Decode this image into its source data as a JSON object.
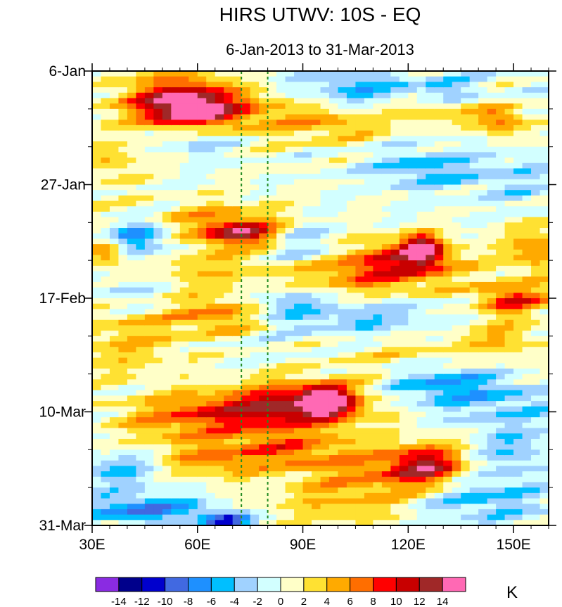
{
  "chart_data": {
    "type": "heatmap",
    "title": "HIRS UTWV: 10S - EQ",
    "subtitle": "6-Jan-2013 to 31-Mar-2013",
    "x_axis": {
      "range": [
        30,
        160
      ],
      "ticks": [
        30,
        60,
        90,
        120,
        150
      ],
      "tick_labels": [
        "30E",
        "60E",
        "90E",
        "120E",
        "150E"
      ],
      "minor_ticks": [
        35,
        40,
        45,
        50,
        55,
        65,
        70,
        75,
        80,
        85,
        95,
        100,
        105,
        110,
        115,
        125,
        130,
        135,
        140,
        145,
        155,
        160
      ]
    },
    "y_axis": {
      "range_days": [
        0,
        84
      ],
      "ticks": [
        0,
        21,
        42,
        63,
        84
      ],
      "tick_labels": [
        "6-Jan",
        "27-Jan",
        "17-Feb",
        "10-Mar",
        "31-Mar"
      ],
      "minor_ticks": [
        7,
        14,
        28,
        35,
        49,
        56,
        70,
        77
      ]
    },
    "reference_lines": [
      {
        "lon": 72.5,
        "color": "#228b22",
        "style": "dashed"
      },
      {
        "lon": 80,
        "color": "#228b22",
        "style": "dashed"
      }
    ],
    "colorbar": {
      "unit": "K",
      "levels": [
        -14,
        -12,
        -10,
        -8,
        -6,
        -4,
        -2,
        0,
        2,
        4,
        6,
        8,
        10,
        12,
        14
      ],
      "level_labels": [
        "-14",
        "-12",
        "-10",
        "-8",
        "-6",
        "-4",
        "-2",
        "0",
        "2",
        "4",
        "6",
        "8",
        "10",
        "12",
        "14"
      ],
      "colors": [
        "#8a2be2",
        "#00008b",
        "#0000cd",
        "#4169e1",
        "#1e90ff",
        "#00bfff",
        "#a0d2ff",
        "#d2ffff",
        "#ffffc8",
        "#ffe132",
        "#ffaa00",
        "#ff6e00",
        "#ff0000",
        "#c80000",
        "#a02828",
        "#ff69b4"
      ]
    },
    "features": [
      {
        "lon": 58,
        "day": 7,
        "value": 12,
        "sx": 9,
        "sy": 2.6
      },
      {
        "lon": 53,
        "day": 5,
        "value": 7,
        "sx": 12,
        "sy": 4
      },
      {
        "lon": 78,
        "day": 8,
        "value": 4,
        "sx": 14,
        "sy": 3
      },
      {
        "lon": 100,
        "day": 10,
        "value": 4,
        "sx": 10,
        "sy": 2.2
      },
      {
        "lon": 128,
        "day": 7,
        "value": 4,
        "sx": 10,
        "sy": 2
      },
      {
        "lon": 146,
        "day": 9,
        "value": 7,
        "sx": 5,
        "sy": 2
      },
      {
        "lon": 36,
        "day": 17,
        "value": 4,
        "sx": 6,
        "sy": 2.5
      },
      {
        "lon": 60,
        "day": 12,
        "value": -5,
        "sx": 8,
        "sy": 2
      },
      {
        "lon": 105,
        "day": 3,
        "value": -5,
        "sx": 12,
        "sy": 2.5
      },
      {
        "lon": 132,
        "day": 4,
        "value": -4,
        "sx": 8,
        "sy": 2
      },
      {
        "lon": 125,
        "day": 18,
        "value": -5,
        "sx": 10,
        "sy": 2.5
      },
      {
        "lon": 150,
        "day": 20,
        "value": -3,
        "sx": 9,
        "sy": 3
      },
      {
        "lon": 42,
        "day": 26,
        "value": 4,
        "sx": 10,
        "sy": 2
      },
      {
        "lon": 73,
        "day": 30,
        "value": 10,
        "sx": 8,
        "sy": 1.6
      },
      {
        "lon": 66,
        "day": 28,
        "value": 5,
        "sx": 16,
        "sy": 3
      },
      {
        "lon": 45,
        "day": 26,
        "value": -4,
        "sx": 8,
        "sy": 2
      },
      {
        "lon": 42,
        "day": 31,
        "value": -8,
        "sx": 9,
        "sy": 2.5
      },
      {
        "lon": 90,
        "day": 32,
        "value": -5,
        "sx": 8,
        "sy": 3
      },
      {
        "lon": 124,
        "day": 33,
        "value": 14,
        "sx": 3.5,
        "sy": 1.8
      },
      {
        "lon": 118,
        "day": 35,
        "value": 8,
        "sx": 12,
        "sy": 3
      },
      {
        "lon": 100,
        "day": 38,
        "value": 5,
        "sx": 20,
        "sy": 3
      },
      {
        "lon": 34,
        "day": 33,
        "value": 9,
        "sx": 4,
        "sy": 2
      },
      {
        "lon": 58,
        "day": 36,
        "value": 3,
        "sx": 12,
        "sy": 3
      },
      {
        "lon": 156,
        "day": 33,
        "value": 6,
        "sx": 6,
        "sy": 3
      },
      {
        "lon": 85,
        "day": 43,
        "value": -5,
        "sx": 9,
        "sy": 3
      },
      {
        "lon": 110,
        "day": 46,
        "value": -4,
        "sx": 12,
        "sy": 3
      },
      {
        "lon": 150,
        "day": 42,
        "value": 9,
        "sx": 7,
        "sy": 2
      },
      {
        "lon": 40,
        "day": 41,
        "value": -3,
        "sx": 8,
        "sy": 2
      },
      {
        "lon": 67,
        "day": 45,
        "value": 6,
        "sx": 10,
        "sy": 2.5
      },
      {
        "lon": 40,
        "day": 50,
        "value": 4,
        "sx": 12,
        "sy": 5
      },
      {
        "lon": 97,
        "day": 61,
        "value": 14,
        "sx": 4.5,
        "sy": 1.8
      },
      {
        "lon": 90,
        "day": 61,
        "value": 8,
        "sx": 14,
        "sy": 3
      },
      {
        "lon": 75,
        "day": 63,
        "value": 7,
        "sx": 18,
        "sy": 2.5
      },
      {
        "lon": 55,
        "day": 65,
        "value": 4,
        "sx": 14,
        "sy": 3
      },
      {
        "lon": 130,
        "day": 58,
        "value": -6,
        "sx": 12,
        "sy": 3
      },
      {
        "lon": 150,
        "day": 62,
        "value": -3,
        "sx": 10,
        "sy": 3
      },
      {
        "lon": 125,
        "day": 73,
        "value": 10,
        "sx": 7,
        "sy": 2.5
      },
      {
        "lon": 112,
        "day": 74,
        "value": 5,
        "sx": 16,
        "sy": 4
      },
      {
        "lon": 85,
        "day": 70,
        "value": 6,
        "sx": 12,
        "sy": 2.5
      },
      {
        "lon": 64,
        "day": 72,
        "value": 5,
        "sx": 10,
        "sy": 2.5
      },
      {
        "lon": 38,
        "day": 74,
        "value": -5,
        "sx": 7,
        "sy": 2
      },
      {
        "lon": 45,
        "day": 81,
        "value": -8,
        "sx": 11,
        "sy": 1.8
      },
      {
        "lon": 68,
        "day": 83,
        "value": -10,
        "sx": 5,
        "sy": 1.2
      },
      {
        "lon": 140,
        "day": 79,
        "value": -5,
        "sx": 12,
        "sy": 3
      },
      {
        "lon": 100,
        "day": 80,
        "value": 3,
        "sx": 14,
        "sy": 3
      },
      {
        "lon": 150,
        "day": 70,
        "value": -4,
        "sx": 7,
        "sy": 3
      },
      {
        "lon": 118,
        "day": 52,
        "value": 3,
        "sx": 14,
        "sy": 3
      },
      {
        "lon": 147,
        "day": 50,
        "value": 4,
        "sx": 8,
        "sy": 3
      }
    ]
  }
}
